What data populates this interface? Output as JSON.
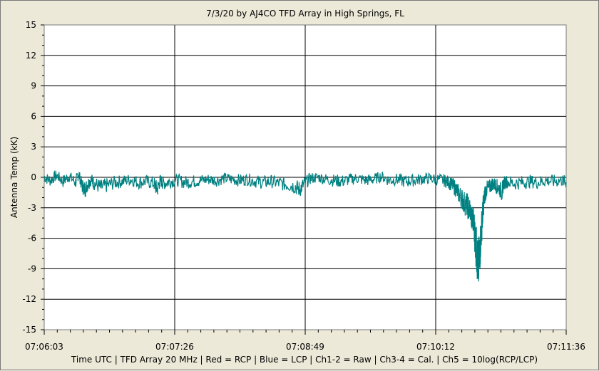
{
  "chart_data": {
    "type": "line",
    "title": "7/3/20  by  AJ4CO TFD Array  in  High Springs, FL",
    "xlabel": "Time UTC | TFD Array 20 MHz | Red = RCP | Blue = LCP | Ch1-2 = Raw | Ch3-4 = Cal. | Ch5 = 10log(RCP/LCP)",
    "ylabel": "Antenna Temp (kK)",
    "ylim": [
      -15,
      15
    ],
    "yticks": [
      "15",
      "12",
      "9",
      "6",
      "3",
      "0",
      "-3",
      "-6",
      "-9",
      "-12",
      "-15"
    ],
    "xticks": [
      "07:06:03",
      "07:07:26",
      "07:08:49",
      "07:10:12",
      "07:11:36"
    ],
    "x_range_seconds": [
      0,
      333
    ],
    "grid": true,
    "series": [
      {
        "color": "#008080",
        "points": [
          [
            0,
            0.0
          ],
          [
            4,
            -0.3
          ],
          [
            8,
            0.2
          ],
          [
            12,
            -0.4
          ],
          [
            16,
            0.1
          ],
          [
            20,
            -0.5
          ],
          [
            22,
            0.4
          ],
          [
            24,
            -0.8
          ],
          [
            26,
            -1.2
          ],
          [
            28,
            -0.6
          ],
          [
            30,
            -0.2
          ],
          [
            32,
            -0.6
          ],
          [
            36,
            -1.0
          ],
          [
            40,
            -0.8
          ],
          [
            45,
            -0.5
          ],
          [
            50,
            -0.4
          ],
          [
            55,
            -0.2
          ],
          [
            60,
            -0.5
          ],
          [
            65,
            -0.4
          ],
          [
            70,
            -0.6
          ],
          [
            72,
            -1.2
          ],
          [
            74,
            -0.3
          ],
          [
            76,
            -0.6
          ],
          [
            80,
            -0.4
          ],
          [
            85,
            -0.3
          ],
          [
            90,
            -0.5
          ],
          [
            95,
            -0.4
          ],
          [
            100,
            -0.3
          ],
          [
            105,
            -0.2
          ],
          [
            110,
            -0.3
          ],
          [
            115,
            -0.1
          ],
          [
            120,
            -0.2
          ],
          [
            125,
            -0.3
          ],
          [
            130,
            -0.2
          ],
          [
            135,
            -0.4
          ],
          [
            140,
            -0.5
          ],
          [
            145,
            -0.4
          ],
          [
            150,
            -0.6
          ],
          [
            155,
            -0.7
          ],
          [
            160,
            -0.9
          ],
          [
            163,
            -1.2
          ],
          [
            166,
            -0.6
          ],
          [
            170,
            -0.1
          ],
          [
            175,
            0.0
          ],
          [
            180,
            -0.2
          ],
          [
            185,
            -0.3
          ],
          [
            190,
            -0.4
          ],
          [
            195,
            -0.2
          ],
          [
            200,
            -0.1
          ],
          [
            205,
            -0.3
          ],
          [
            210,
            -0.2
          ],
          [
            215,
            0.1
          ],
          [
            220,
            -0.3
          ],
          [
            225,
            -0.2
          ],
          [
            230,
            -0.4
          ],
          [
            235,
            -0.3
          ],
          [
            240,
            -0.2
          ],
          [
            245,
            -0.1
          ],
          [
            250,
            -0.2
          ],
          [
            255,
            -0.3
          ],
          [
            258,
            -0.5
          ],
          [
            260,
            -0.7
          ],
          [
            262,
            -1.0
          ],
          [
            264,
            -1.5
          ],
          [
            266,
            -2.0
          ],
          [
            268,
            -2.5
          ],
          [
            270,
            -2.8
          ],
          [
            272,
            -3.5
          ],
          [
            274,
            -4.5
          ],
          [
            275,
            -6.0
          ],
          [
            276,
            -7.5
          ],
          [
            277,
            -9.0
          ],
          [
            278,
            -7.0
          ],
          [
            279,
            -5.0
          ],
          [
            280,
            -3.0
          ],
          [
            281,
            -1.8
          ],
          [
            282,
            -1.2
          ],
          [
            284,
            -1.0
          ],
          [
            286,
            -0.6
          ],
          [
            288,
            -0.8
          ],
          [
            290,
            -1.0
          ],
          [
            292,
            -1.5
          ],
          [
            293,
            -0.6
          ],
          [
            295,
            -0.4
          ],
          [
            300,
            -0.6
          ],
          [
            305,
            -0.5
          ],
          [
            310,
            -0.4
          ],
          [
            315,
            -0.5
          ],
          [
            320,
            -0.3
          ],
          [
            325,
            -0.4
          ],
          [
            330,
            -0.3
          ],
          [
            333,
            -0.5
          ]
        ]
      }
    ]
  }
}
